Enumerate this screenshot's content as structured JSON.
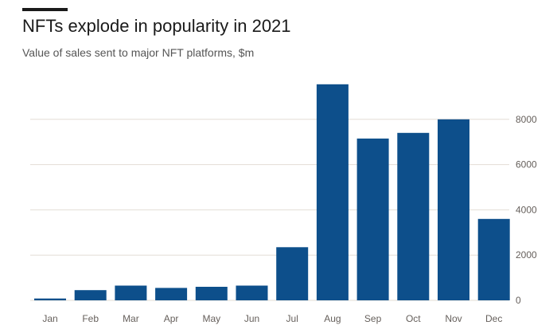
{
  "title": "NFTs explode in popularity in 2021",
  "subtitle": "Value of sales sent to major NFT platforms, $m",
  "colors": {
    "bar": "#0d4f8b",
    "grid": "#e3ddd6",
    "axis": "#66605c",
    "rule": "#1a1a1a"
  },
  "chart_data": {
    "type": "bar",
    "title": "NFTs explode in popularity in 2021",
    "subtitle": "Value of sales sent to major NFT platforms, $m",
    "xlabel": "",
    "ylabel": "",
    "categories": [
      "Jan",
      "Feb",
      "Mar",
      "Apr",
      "May",
      "Jun",
      "Jul",
      "Aug",
      "Sep",
      "Oct",
      "Nov",
      "Dec"
    ],
    "values": [
      80,
      450,
      650,
      550,
      600,
      650,
      2350,
      9550,
      7150,
      7400,
      8000,
      3600
    ],
    "ylim": [
      0,
      10000
    ],
    "yticks": [
      0,
      2000,
      4000,
      6000,
      8000
    ],
    "ytick_labels": [
      "0",
      "2000",
      "4000",
      "6000",
      "8000"
    ],
    "y_axis_side": "right",
    "grid": true
  }
}
